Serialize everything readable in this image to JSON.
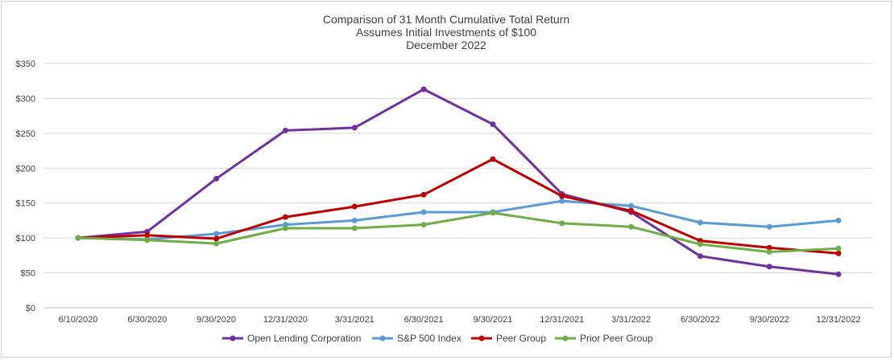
{
  "chart_data": {
    "type": "line",
    "title": [
      "Comparison of 31 Month Cumulative Total Return",
      "Assumes Initial Investments of $100",
      "December 2022"
    ],
    "categories": [
      "6/10/2020",
      "6/30/2020",
      "9/30/2020",
      "12/31/2020",
      "3/31/2021",
      "6/30/2021",
      "9/30/2021",
      "12/31/2021",
      "3/31/2022",
      "6/30/2022",
      "9/30/2022",
      "12/31/2022"
    ],
    "ylim": [
      0,
      350
    ],
    "yticks": [
      0,
      50,
      100,
      150,
      200,
      250,
      300,
      350
    ],
    "ytick_labels": [
      "$0",
      "$50",
      "$100",
      "$150",
      "$200",
      "$250",
      "$300",
      "$350"
    ],
    "grid": true,
    "legend_position": "bottom",
    "series": [
      {
        "name": "Open Lending Corporation",
        "color": "#7030a0",
        "values": [
          100,
          109,
          185,
          254,
          258,
          313,
          263,
          163,
          137,
          74,
          59,
          48
        ]
      },
      {
        "name": "S&P 500 Index",
        "color": "#5b9bd5",
        "values": [
          100,
          98,
          106,
          119,
          125,
          137,
          137,
          153,
          146,
          122,
          116,
          125
        ]
      },
      {
        "name": "Peer Group",
        "color": "#c00000",
        "values": [
          100,
          104,
          99,
          130,
          145,
          162,
          213,
          160,
          139,
          96,
          86,
          78
        ]
      },
      {
        "name": "Prior Peer Group",
        "color": "#70ad47",
        "values": [
          100,
          97,
          92,
          114,
          114,
          119,
          136,
          121,
          116,
          91,
          80,
          85
        ]
      }
    ]
  }
}
